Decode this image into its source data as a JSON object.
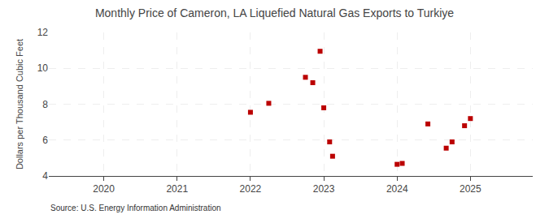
{
  "chart_data": {
    "type": "scatter",
    "title": "Monthly Price of Cameron, LA Liquefied Natural Gas Exports to Turkiye",
    "ylabel": "Dollars per Thousand Cubic Feet",
    "annotations": [
      "Source: U.S. Energy Information Administration"
    ],
    "x": [
      2022.0,
      2022.25,
      2022.75,
      2022.85,
      2022.95,
      2023.0,
      2023.08,
      2023.12,
      2024.0,
      2024.07,
      2024.42,
      2024.67,
      2024.75,
      2024.92,
      2025.0
    ],
    "values": [
      7.55,
      8.05,
      9.5,
      9.2,
      10.95,
      7.8,
      5.9,
      5.1,
      4.65,
      4.7,
      6.9,
      5.55,
      5.9,
      6.8,
      7.2
    ],
    "color": "#bb0000",
    "marker": "square",
    "xlim": [
      2019.25,
      2025.85
    ],
    "xticks": [
      2020,
      2021,
      2022,
      2023,
      2024,
      2025
    ],
    "ylim": [
      4,
      12
    ],
    "yticks": [
      4,
      6,
      8,
      10,
      12
    ],
    "grid": true
  }
}
